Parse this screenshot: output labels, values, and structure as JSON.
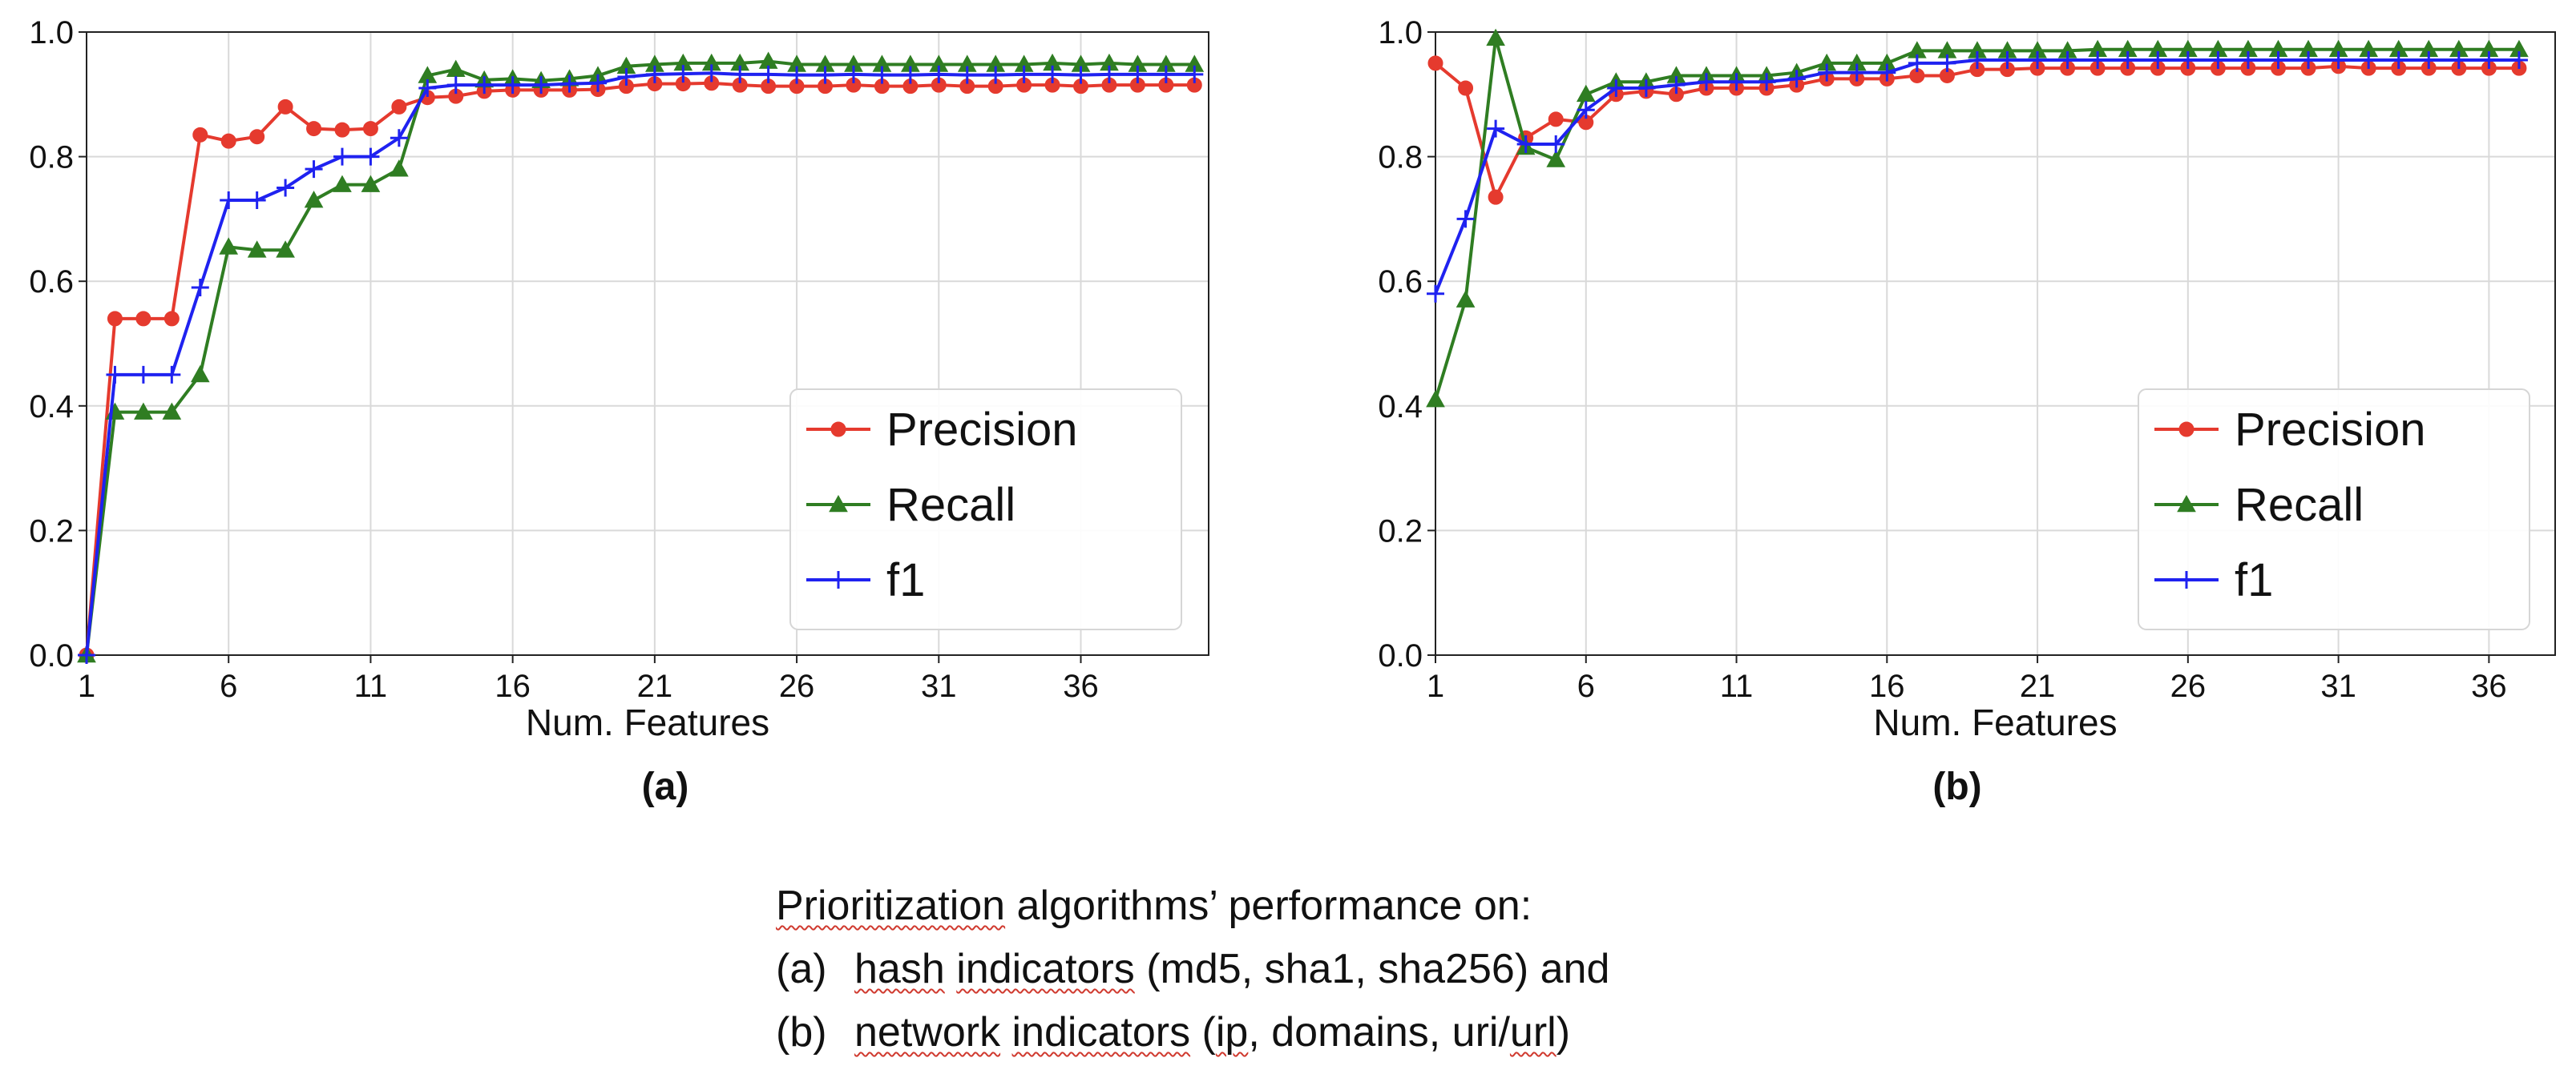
{
  "figure": {
    "caption": {
      "intro_word": "Prioritization",
      "intro_rest": " algorithms’ performance on:",
      "item_a": {
        "marker": "(a)",
        "word1": "hash",
        "gap1": " ",
        "word2": "indicators",
        "rest": " (md5, sha1, sha256) and"
      },
      "item_b": {
        "marker": "(b)",
        "word1": "network",
        "gap1": " ",
        "word2": "indicators",
        "mid": " (",
        "word3": "ip",
        "rest": ", domains, uri/",
        "word4": "url",
        "end": ")"
      }
    }
  },
  "colors": {
    "precision": "#e53a2e",
    "recall": "#2f7d22",
    "f1": "#1f22f0",
    "grid": "#d9d9d9",
    "axis": "#222222",
    "legend_border": "#d6d6d6"
  },
  "chart_data": [
    {
      "type": "line",
      "panel_label": "(a)",
      "xlabel": "Num. Features",
      "ylabel": "",
      "xlim": [
        1,
        40.5
      ],
      "ylim": [
        0,
        1.0
      ],
      "xticks": [
        1,
        6,
        11,
        16,
        21,
        26,
        31,
        36
      ],
      "yticks": [
        0.0,
        0.2,
        0.4,
        0.6,
        0.8,
        1.0
      ],
      "ytick_labels": [
        "0.0",
        "0.2",
        "0.4",
        "0.6",
        "0.8",
        "1.0"
      ],
      "grid": true,
      "legend": "lower-right",
      "x": [
        1,
        2,
        3,
        4,
        5,
        6,
        7,
        8,
        9,
        10,
        11,
        12,
        13,
        14,
        15,
        16,
        17,
        18,
        19,
        20,
        21,
        22,
        23,
        24,
        25,
        26,
        27,
        28,
        29,
        30,
        31,
        32,
        33,
        34,
        35,
        36,
        37,
        38,
        39,
        40
      ],
      "series": [
        {
          "name": "Precision",
          "marker": "circle",
          "values": [
            0.0,
            0.54,
            0.54,
            0.54,
            0.835,
            0.825,
            0.832,
            0.88,
            0.845,
            0.843,
            0.845,
            0.88,
            0.895,
            0.897,
            0.905,
            0.907,
            0.907,
            0.907,
            0.908,
            0.913,
            0.917,
            0.917,
            0.918,
            0.915,
            0.913,
            0.913,
            0.913,
            0.915,
            0.913,
            0.913,
            0.915,
            0.913,
            0.913,
            0.915,
            0.915,
            0.913,
            0.915,
            0.915,
            0.915,
            0.915
          ]
        },
        {
          "name": "Recall",
          "marker": "triangle",
          "values": [
            0.0,
            0.39,
            0.39,
            0.39,
            0.45,
            0.655,
            0.65,
            0.65,
            0.73,
            0.755,
            0.755,
            0.78,
            0.93,
            0.94,
            0.923,
            0.925,
            0.922,
            0.925,
            0.93,
            0.945,
            0.948,
            0.95,
            0.95,
            0.95,
            0.953,
            0.948,
            0.948,
            0.948,
            0.948,
            0.948,
            0.948,
            0.948,
            0.948,
            0.948,
            0.95,
            0.948,
            0.95,
            0.948,
            0.948,
            0.948
          ]
        },
        {
          "name": "f1",
          "marker": "plus",
          "values": [
            0.0,
            0.45,
            0.45,
            0.45,
            0.59,
            0.73,
            0.73,
            0.75,
            0.78,
            0.8,
            0.8,
            0.83,
            0.91,
            0.915,
            0.915,
            0.915,
            0.915,
            0.917,
            0.918,
            0.928,
            0.932,
            0.933,
            0.934,
            0.932,
            0.932,
            0.931,
            0.931,
            0.932,
            0.931,
            0.931,
            0.932,
            0.931,
            0.931,
            0.932,
            0.932,
            0.931,
            0.932,
            0.932,
            0.932,
            0.932
          ]
        }
      ]
    },
    {
      "type": "line",
      "panel_label": "(b)",
      "xlabel": "Num. Features",
      "ylabel": "",
      "xlim": [
        1,
        38.2
      ],
      "ylim": [
        0,
        1.0
      ],
      "xticks": [
        1,
        6,
        11,
        16,
        21,
        26,
        31,
        36
      ],
      "yticks": [
        0.0,
        0.2,
        0.4,
        0.6,
        0.8,
        1.0
      ],
      "ytick_labels": [
        "0.0",
        "0.2",
        "0.4",
        "0.6",
        "0.8",
        "1.0"
      ],
      "grid": true,
      "legend": "lower-right",
      "x": [
        1,
        2,
        3,
        4,
        5,
        6,
        7,
        8,
        9,
        10,
        11,
        12,
        13,
        14,
        15,
        16,
        17,
        18,
        19,
        20,
        21,
        22,
        23,
        24,
        25,
        26,
        27,
        28,
        29,
        30,
        31,
        32,
        33,
        34,
        35,
        36,
        37
      ],
      "series": [
        {
          "name": "Precision",
          "marker": "circle",
          "values": [
            0.95,
            0.91,
            0.735,
            0.83,
            0.86,
            0.855,
            0.9,
            0.905,
            0.9,
            0.91,
            0.91,
            0.91,
            0.915,
            0.925,
            0.925,
            0.925,
            0.93,
            0.93,
            0.94,
            0.94,
            0.942,
            0.942,
            0.942,
            0.942,
            0.942,
            0.942,
            0.942,
            0.942,
            0.942,
            0.942,
            0.945,
            0.942,
            0.942,
            0.942,
            0.942,
            0.942,
            0.942
          ]
        },
        {
          "name": "Recall",
          "marker": "triangle",
          "values": [
            0.41,
            0.57,
            0.99,
            0.815,
            0.795,
            0.9,
            0.92,
            0.92,
            0.93,
            0.93,
            0.93,
            0.93,
            0.935,
            0.95,
            0.95,
            0.95,
            0.97,
            0.97,
            0.97,
            0.97,
            0.97,
            0.97,
            0.972,
            0.972,
            0.972,
            0.972,
            0.972,
            0.972,
            0.972,
            0.972,
            0.972,
            0.972,
            0.972,
            0.972,
            0.972,
            0.972,
            0.972
          ]
        },
        {
          "name": "f1",
          "marker": "plus",
          "values": [
            0.58,
            0.7,
            0.845,
            0.82,
            0.82,
            0.875,
            0.91,
            0.91,
            0.915,
            0.92,
            0.92,
            0.92,
            0.925,
            0.935,
            0.935,
            0.935,
            0.95,
            0.95,
            0.955,
            0.955,
            0.955,
            0.955,
            0.955,
            0.955,
            0.955,
            0.955,
            0.955,
            0.955,
            0.955,
            0.955,
            0.955,
            0.955,
            0.955,
            0.955,
            0.955,
            0.955,
            0.955
          ]
        }
      ]
    }
  ]
}
